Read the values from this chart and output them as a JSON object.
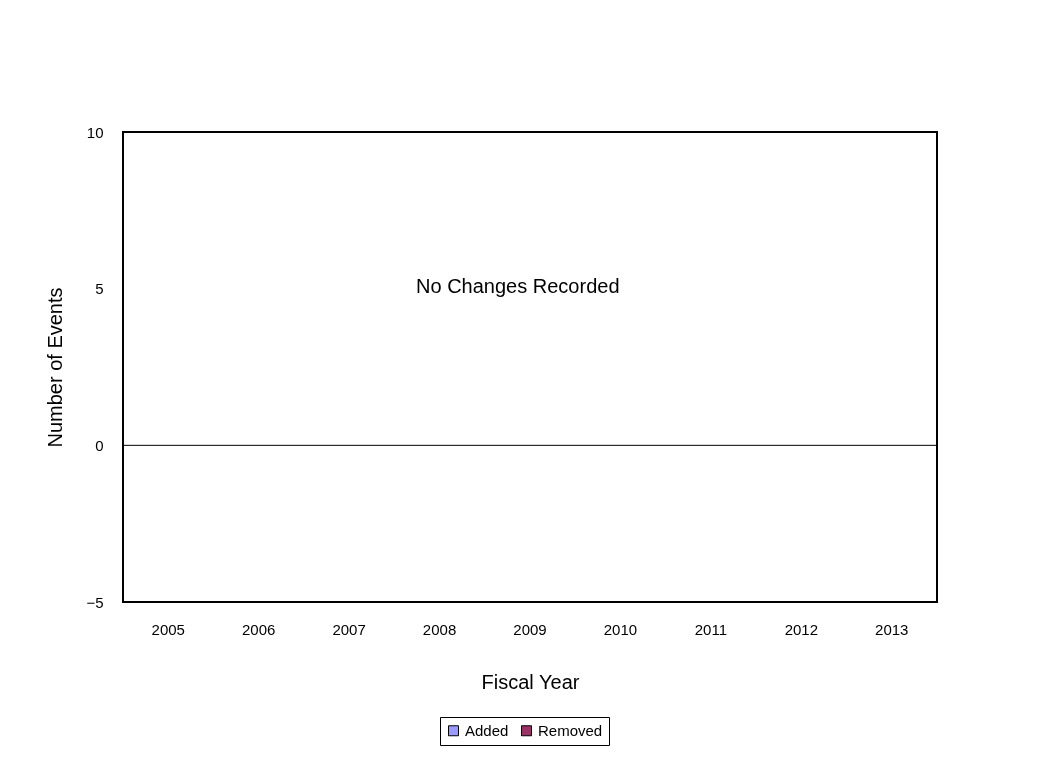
{
  "chart_data": {
    "type": "bar",
    "xlabel": "Fiscal Year",
    "ylabel": "Number of Events",
    "categories": [
      "2005",
      "2006",
      "2007",
      "2008",
      "2009",
      "2010",
      "2011",
      "2012",
      "2013"
    ],
    "series": [
      {
        "name": "Added",
        "color": "#9999ff",
        "values": [
          0,
          0,
          0,
          0,
          0,
          0,
          0,
          0,
          0
        ]
      },
      {
        "name": "Removed",
        "color": "#993366",
        "values": [
          0,
          0,
          0,
          0,
          0,
          0,
          0,
          0,
          0
        ]
      }
    ],
    "ylim": [
      -5,
      10
    ],
    "yticks": [
      -5,
      0,
      5,
      10
    ],
    "grid": false,
    "legend": "bottom",
    "ref_lines": [
      {
        "axis": "y",
        "value": 0,
        "color": "#000000"
      }
    ],
    "annotations": [
      "No Changes Recorded"
    ]
  }
}
